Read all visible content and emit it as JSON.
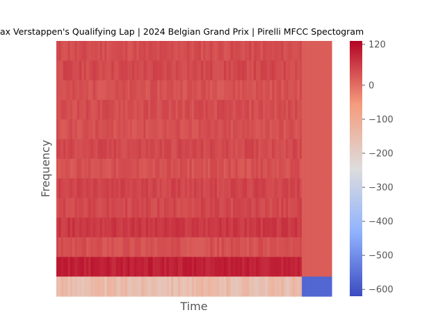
{
  "chart_data": {
    "type": "heatmap",
    "title": "ax Verstappen's Qualifying Lap | 2024 Belgian Grand Prix | Pirelli MFCC Spectogram",
    "xlabel": "Time",
    "ylabel": "Frequency",
    "colormap": "coolwarm",
    "clim": [
      -620,
      130
    ],
    "colorbar_ticks": [
      120,
      0,
      -100,
      -200,
      -300,
      -400,
      -500,
      -600
    ],
    "colorbar_tick_labels": [
      "120",
      "0",
      "−100",
      "−200",
      "−300",
      "−400",
      "−500",
      "−600"
    ],
    "n_coefficients": 13,
    "band_values_top_to_bottom": [
      40,
      45,
      35,
      40,
      35,
      45,
      35,
      50,
      45,
      65,
      35,
      95,
      -150
    ],
    "padding_value": 20,
    "bottom_padding_value": -570,
    "signal_fraction_of_time_axis": 0.895,
    "grid": false
  }
}
